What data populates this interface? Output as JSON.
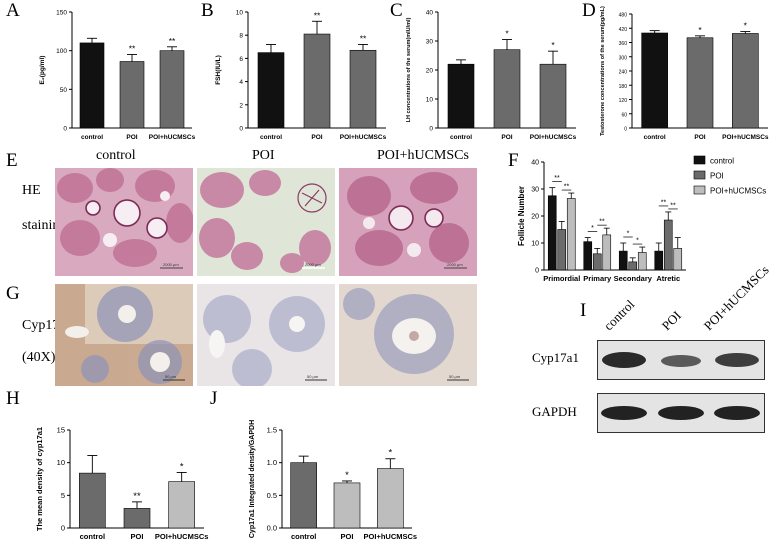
{
  "panel_letters": [
    "A",
    "B",
    "C",
    "D",
    "E",
    "F",
    "G",
    "H",
    "I",
    "J"
  ],
  "colors": {
    "black": "#111111",
    "dark_gray": "#6b6b6b",
    "light_gray": "#bdbdbd",
    "he_pink": "#c48aa6",
    "ihc_bg": "#e8dfd6"
  },
  "chart_data": [
    {
      "id": "A",
      "type": "bar",
      "categories": [
        "control",
        "POI",
        "POI+hUCMSCs"
      ],
      "values": [
        110,
        86,
        100
      ],
      "errors": [
        6,
        9,
        5
      ],
      "sig": [
        "",
        "**",
        "**"
      ],
      "ylabel": "E₂(pg/ml)",
      "ylim": [
        0,
        150
      ],
      "yticks": [
        "0",
        "50",
        "100",
        "150"
      ]
    },
    {
      "id": "B",
      "type": "bar",
      "categories": [
        "control",
        "POI",
        "POI+hUCMSCs"
      ],
      "values": [
        6.5,
        8.1,
        6.7
      ],
      "errors": [
        0.7,
        1.1,
        0.5
      ],
      "sig": [
        "",
        "**",
        "**"
      ],
      "ylabel": "FSH(IU/L)",
      "ylim": [
        0,
        10
      ],
      "yticks": [
        "0",
        "2",
        "4",
        "6",
        "8",
        "10"
      ]
    },
    {
      "id": "C",
      "type": "bar",
      "categories": [
        "control",
        "POI",
        "POI+hUCMSCs"
      ],
      "values": [
        22,
        27,
        22
      ],
      "errors": [
        1.5,
        3.5,
        4.5
      ],
      "sig": [
        "",
        "*",
        "*"
      ],
      "ylabel": "LH concentrations of the serum(mIU/ml)",
      "ylim": [
        0,
        40
      ],
      "yticks": [
        "0",
        "10",
        "20",
        "30",
        "40"
      ]
    },
    {
      "id": "D",
      "type": "bar",
      "categories": [
        "control",
        "POI",
        "POI+hUCMSCs"
      ],
      "values": [
        400,
        380,
        398
      ],
      "errors": [
        10,
        8,
        8
      ],
      "sig": [
        "",
        "*",
        "*"
      ],
      "ylabel": "Testosterone concentrations of the serum(pg/mL)",
      "ylim": [
        0,
        480
      ],
      "yticks": [
        "0",
        "60",
        "120",
        "180",
        "240",
        "300",
        "360",
        "420",
        "480"
      ]
    },
    {
      "id": "F",
      "type": "bar",
      "categories": [
        "Primordial",
        "Primary",
        "Secondary",
        "Atretic"
      ],
      "series": [
        {
          "name": "control",
          "values": [
            27.5,
            10.5,
            7,
            7
          ]
        },
        {
          "name": "POI",
          "values": [
            15,
            6,
            3,
            18.5
          ]
        },
        {
          "name": "POI+hUCMSCs",
          "values": [
            26.5,
            13,
            6.5,
            8
          ]
        }
      ],
      "errors": [
        [
          3,
          1.5,
          3,
          3
        ],
        [
          3,
          2,
          1.5,
          3
        ],
        [
          2,
          2.5,
          2,
          4
        ]
      ],
      "ylabel": "Follicle Number",
      "ylim": [
        0,
        40
      ],
      "yticks": [
        "0",
        "10",
        "20",
        "30",
        "40"
      ],
      "annotations": [
        "**",
        "**",
        "*",
        "**",
        "*",
        "*",
        "**",
        "**"
      ],
      "legend": "right"
    },
    {
      "id": "H",
      "type": "bar",
      "categories": [
        "control",
        "POI",
        "POI+hUCMSCs"
      ],
      "values": [
        8.4,
        3.0,
        7.1
      ],
      "errors": [
        2.7,
        1.0,
        1.4
      ],
      "sig": [
        "",
        "**",
        "*"
      ],
      "ylabel": "The mean density of cyp17a1",
      "ylim": [
        0,
        15
      ],
      "yticks": [
        "0",
        "5",
        "10",
        "15"
      ]
    },
    {
      "id": "J",
      "type": "bar",
      "categories": [
        "control",
        "POI",
        "POI+hUCMSCs"
      ],
      "values": [
        1.0,
        0.69,
        0.91
      ],
      "errors": [
        0.1,
        0.03,
        0.15
      ],
      "sig": [
        "",
        "*",
        "*"
      ],
      "ylabel": "Cyp17a1 Integrated density/GAPDH",
      "ylim": [
        0,
        1.5
      ],
      "yticks": [
        "0.0",
        "0.5",
        "1.0",
        "1.5"
      ]
    }
  ],
  "panel_E": {
    "columns": [
      "control",
      "POI",
      "POI+hUCMSCs"
    ],
    "row_label_1": "HE",
    "row_label_2": "staining",
    "scale_bars": [
      "2000 μm",
      "2000 μm",
      "2000 μm"
    ]
  },
  "panel_G": {
    "label_1": "Cyp17a1",
    "label_2": "(40X)",
    "scale_bars": [
      "50 μm",
      "50 μm",
      "50 μm"
    ]
  },
  "panel_I": {
    "columns": [
      "control",
      "POI",
      "POI+hUCMSCs"
    ],
    "rows": [
      "Cyp17a1",
      "GAPDH"
    ],
    "band_intensity": {
      "Cyp17a1": [
        1.0,
        0.6,
        0.85
      ],
      "GAPDH": [
        1.0,
        1.0,
        1.0
      ]
    }
  }
}
